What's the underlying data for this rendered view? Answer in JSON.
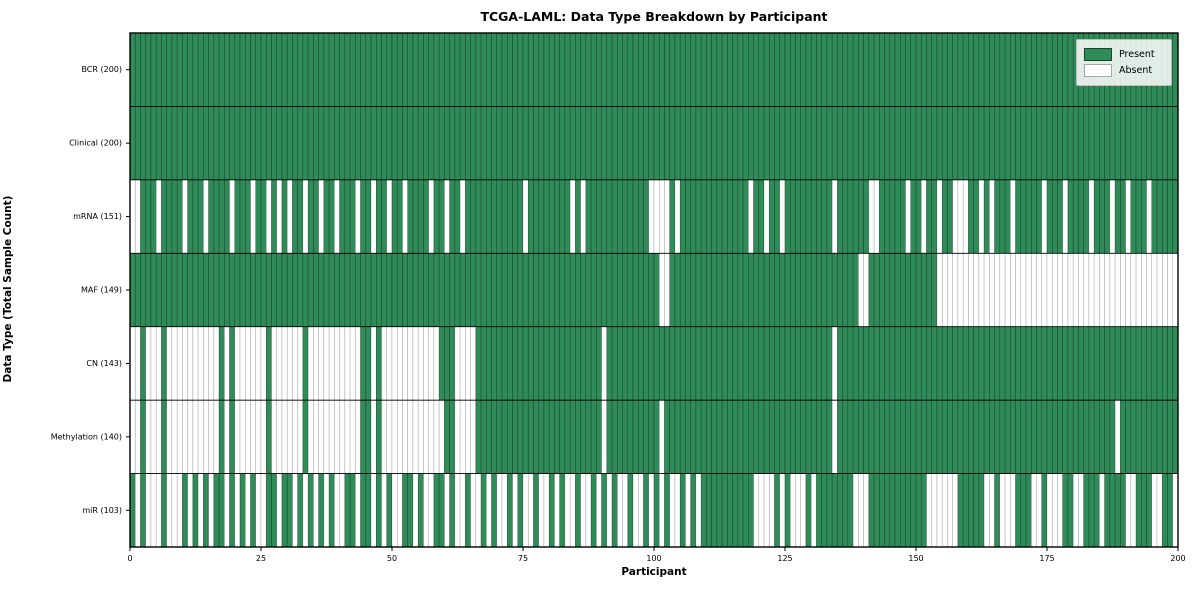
{
  "chart_data": {
    "type": "heatmap",
    "title": "TCGA-LAML: Data Type Breakdown by Participant",
    "xlabel": "Participant",
    "ylabel": "Data Type (Total Sample Count)",
    "x_ticks": [
      0,
      25,
      50,
      75,
      100,
      125,
      150,
      175,
      200
    ],
    "x_range": [
      0,
      200
    ],
    "n_participants": 200,
    "grid": "row-separators",
    "legend_position": "upper right",
    "colors": {
      "present": "#2f8c59",
      "absent": "#ffffff",
      "present_edge": "rgba(10,40,25,0.65)",
      "absent_edge": "rgba(0,0,0,0.28)",
      "axis": "#000000"
    },
    "legend": [
      {
        "label": "Present",
        "color": "#2f8c59"
      },
      {
        "label": "Absent",
        "color": "#ffffff"
      }
    ],
    "rows": [
      {
        "label": "BCR (200)",
        "data_type": "BCR",
        "present_count": 200,
        "presence": "11111111111111111111111111111111111111111111111111111111111111111111111111111111111111111111111111111111111111111111111111111111111111111111111111111111111111111111111111111111111111111111111111111111"
      },
      {
        "label": "Clinical (200)",
        "data_type": "Clinical",
        "present_count": 200,
        "presence": "11111111111111111111111111111111111111111111111111111111111111111111111111111111111111111111111111111111111111111111111111111111111111111111111111111111111111111111111111111111111111111111111111111111"
      },
      {
        "label": "mRNA (151)",
        "data_type": "mRNA",
        "present_count": 151,
        "presence": "00111011110111011110111011010101101101101110110110110111101101101111111111101111111101011111111111100001011111111111110110110111111111011111100111110110110110001101011101111101110111101110110111011111"
      },
      {
        "label": "MAF (149)",
        "data_type": "MAF",
        "present_count": 149,
        "presence": "11111111111111111111111111111111111111111111111111111111111111111111111111111111111111111111111111111001111111111111111111111111111111111110011111111111110000000000000000000000000000000000000000000000"
      },
      {
        "label": "CN (143)",
        "data_type": "CN",
        "present_count": 143,
        "presence": "00100010000000000101000000100000010000000000110100000000000111000011111111111111111111111101111111111111111111111111111111111111111111011111111111111111111111111111111111111111111111111111111111111111"
      },
      {
        "label": "Methylation (140)",
        "data_type": "Methylation",
        "present_count": 140,
        "presence": "00100010000000000101000000100000010000000000110100000000000011000011111111111111111111111101111111111011111111111111111111111111111111011111111111111111111111111111111111111111111111111111011111111111"
      },
      {
        "label": "miR (103)",
        "data_type": "miR",
        "present_count": 103,
        "presence": "10100010001010101101010100110110101010100110110101001101001101001001010010100100101001001010100100101010010101111111111000010100010111111100011111111111000000111110010001110010001100111011110011100110"
      }
    ]
  }
}
